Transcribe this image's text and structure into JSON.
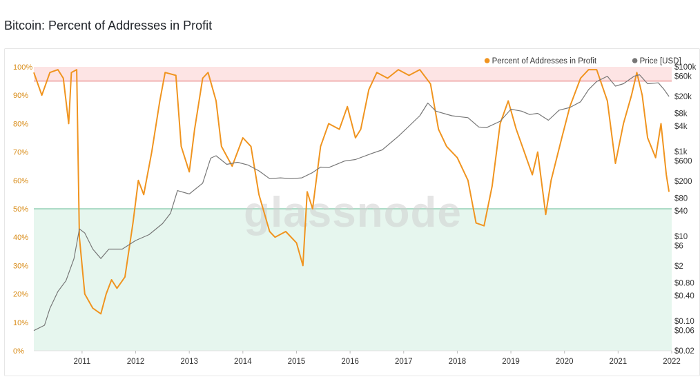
{
  "title": "Bitcoin: Percent of Addresses in Profit",
  "chart_data": {
    "type": "line",
    "watermark": "glassnode",
    "x_ticks": [
      "2011",
      "2012",
      "2013",
      "2014",
      "2015",
      "2016",
      "2017",
      "2018",
      "2019",
      "2020",
      "2021",
      "2022"
    ],
    "left_axis": {
      "ticks": [
        "0%",
        "10%",
        "20%",
        "30%",
        "40%",
        "50%",
        "60%",
        "70%",
        "80%",
        "90%",
        "100%"
      ],
      "range": [
        0,
        100
      ]
    },
    "right_axis": {
      "ticks": [
        "$100k",
        "$60k",
        "$20k",
        "$8k",
        "$4k",
        "$1k",
        "$600",
        "$200",
        "$80",
        "$40",
        "$10",
        "$6",
        "$2",
        "$0.80",
        "$0.40",
        "$0.10",
        "$0.06",
        "$0.02"
      ],
      "scale": "log",
      "range": [
        0.02,
        100000
      ]
    },
    "bands": [
      {
        "name": "upper",
        "from": 95,
        "to": 100,
        "color": "#fde4e4"
      },
      {
        "name": "lower",
        "from": 0,
        "to": 50,
        "color": "#e6f6ee"
      }
    ],
    "thresholds": [
      {
        "value": 95,
        "color": "#e88080"
      },
      {
        "value": 50,
        "color": "#7fc8a8"
      }
    ],
    "series": [
      {
        "name": "Percent of Addresses in Profit",
        "color": "#f0941f",
        "axis": "left",
        "points": [
          [
            2010.6,
            98
          ],
          [
            2010.75,
            90
          ],
          [
            2010.9,
            98
          ],
          [
            2011.05,
            99
          ],
          [
            2011.15,
            96
          ],
          [
            2011.25,
            80
          ],
          [
            2011.3,
            98
          ],
          [
            2011.4,
            99
          ],
          [
            2011.45,
            40
          ],
          [
            2011.55,
            20
          ],
          [
            2011.7,
            15
          ],
          [
            2011.85,
            13
          ],
          [
            2011.95,
            20
          ],
          [
            2012.05,
            25
          ],
          [
            2012.15,
            22
          ],
          [
            2012.3,
            26
          ],
          [
            2012.45,
            45
          ],
          [
            2012.55,
            60
          ],
          [
            2012.65,
            55
          ],
          [
            2012.8,
            70
          ],
          [
            2012.95,
            88
          ],
          [
            2013.05,
            98
          ],
          [
            2013.25,
            97
          ],
          [
            2013.35,
            72
          ],
          [
            2013.5,
            63
          ],
          [
            2013.6,
            78
          ],
          [
            2013.75,
            96
          ],
          [
            2013.85,
            98
          ],
          [
            2014.0,
            88
          ],
          [
            2014.1,
            72
          ],
          [
            2014.3,
            65
          ],
          [
            2014.5,
            75
          ],
          [
            2014.65,
            72
          ],
          [
            2014.8,
            55
          ],
          [
            2015.0,
            42
          ],
          [
            2015.1,
            40
          ],
          [
            2015.3,
            42
          ],
          [
            2015.5,
            38
          ],
          [
            2015.62,
            30
          ],
          [
            2015.7,
            56
          ],
          [
            2015.8,
            50
          ],
          [
            2015.95,
            72
          ],
          [
            2016.1,
            80
          ],
          [
            2016.3,
            78
          ],
          [
            2016.45,
            86
          ],
          [
            2016.6,
            75
          ],
          [
            2016.7,
            78
          ],
          [
            2016.85,
            92
          ],
          [
            2017.0,
            98
          ],
          [
            2017.2,
            96
          ],
          [
            2017.4,
            99
          ],
          [
            2017.6,
            97
          ],
          [
            2017.8,
            99
          ],
          [
            2018.0,
            94
          ],
          [
            2018.15,
            78
          ],
          [
            2018.3,
            72
          ],
          [
            2018.5,
            68
          ],
          [
            2018.7,
            60
          ],
          [
            2018.85,
            45
          ],
          [
            2019.0,
            44
          ],
          [
            2019.15,
            58
          ],
          [
            2019.3,
            80
          ],
          [
            2019.45,
            88
          ],
          [
            2019.6,
            78
          ],
          [
            2019.75,
            70
          ],
          [
            2019.9,
            62
          ],
          [
            2020.0,
            70
          ],
          [
            2020.15,
            48
          ],
          [
            2020.25,
            60
          ],
          [
            2020.45,
            75
          ],
          [
            2020.6,
            86
          ],
          [
            2020.8,
            96
          ],
          [
            2020.95,
            99
          ],
          [
            2021.1,
            99
          ],
          [
            2021.3,
            88
          ],
          [
            2021.45,
            66
          ],
          [
            2021.6,
            80
          ],
          [
            2021.75,
            90
          ],
          [
            2021.85,
            98
          ],
          [
            2021.95,
            90
          ],
          [
            2022.05,
            75
          ],
          [
            2022.2,
            68
          ],
          [
            2022.3,
            80
          ],
          [
            2022.4,
            62
          ],
          [
            2022.45,
            56
          ]
        ]
      },
      {
        "name": "Price [USD]",
        "color": "#777777",
        "axis": "right",
        "points": [
          [
            2010.6,
            0.06
          ],
          [
            2010.8,
            0.08
          ],
          [
            2010.9,
            0.2
          ],
          [
            2011.05,
            0.5
          ],
          [
            2011.2,
            0.9
          ],
          [
            2011.35,
            3
          ],
          [
            2011.45,
            15
          ],
          [
            2011.55,
            12
          ],
          [
            2011.7,
            5
          ],
          [
            2011.85,
            3
          ],
          [
            2012.0,
            5
          ],
          [
            2012.25,
            5
          ],
          [
            2012.5,
            8
          ],
          [
            2012.75,
            11
          ],
          [
            2013.0,
            20
          ],
          [
            2013.15,
            35
          ],
          [
            2013.28,
            120
          ],
          [
            2013.5,
            100
          ],
          [
            2013.75,
            180
          ],
          [
            2013.9,
            700
          ],
          [
            2014.0,
            800
          ],
          [
            2014.2,
            500
          ],
          [
            2014.4,
            560
          ],
          [
            2014.6,
            480
          ],
          [
            2014.8,
            350
          ],
          [
            2015.0,
            230
          ],
          [
            2015.2,
            240
          ],
          [
            2015.4,
            230
          ],
          [
            2015.6,
            240
          ],
          [
            2015.8,
            320
          ],
          [
            2015.95,
            430
          ],
          [
            2016.1,
            420
          ],
          [
            2016.4,
            600
          ],
          [
            2016.6,
            650
          ],
          [
            2016.9,
            900
          ],
          [
            2017.1,
            1100
          ],
          [
            2017.4,
            2300
          ],
          [
            2017.6,
            4000
          ],
          [
            2017.8,
            7000
          ],
          [
            2017.95,
            14000
          ],
          [
            2018.1,
            9000
          ],
          [
            2018.4,
            7000
          ],
          [
            2018.7,
            6300
          ],
          [
            2018.9,
            3800
          ],
          [
            2019.05,
            3700
          ],
          [
            2019.3,
            5200
          ],
          [
            2019.5,
            10000
          ],
          [
            2019.7,
            9000
          ],
          [
            2019.85,
            7500
          ],
          [
            2020.0,
            8000
          ],
          [
            2020.2,
            5500
          ],
          [
            2020.4,
            9500
          ],
          [
            2020.6,
            11000
          ],
          [
            2020.8,
            15000
          ],
          [
            2020.95,
            29000
          ],
          [
            2021.1,
            45000
          ],
          [
            2021.3,
            60000
          ],
          [
            2021.45,
            35000
          ],
          [
            2021.6,
            40000
          ],
          [
            2021.8,
            60000
          ],
          [
            2021.9,
            65000
          ],
          [
            2022.05,
            40000
          ],
          [
            2022.25,
            42000
          ],
          [
            2022.35,
            30000
          ],
          [
            2022.45,
            20000
          ]
        ]
      }
    ],
    "legend": [
      {
        "label": "Percent of Addresses in Profit",
        "color": "#f0941f"
      },
      {
        "label": "Price [USD]",
        "color": "#777777"
      }
    ],
    "x_range": [
      2010.6,
      2022.5
    ]
  }
}
